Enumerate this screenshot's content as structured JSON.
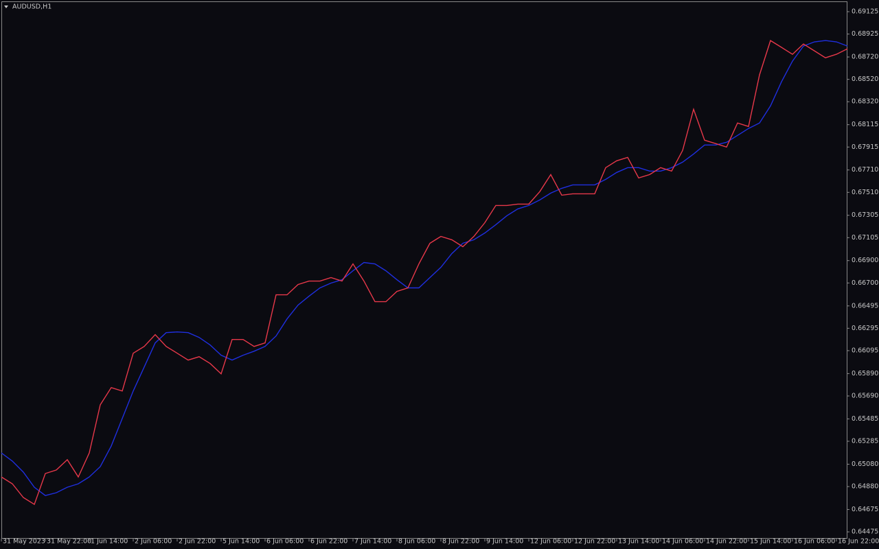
{
  "chart_data": {
    "type": "line",
    "title": "AUDUSD,H1",
    "categories": [
      "31 May 2023",
      null,
      null,
      null,
      "31 May 22:00",
      null,
      null,
      null,
      "1 Jun 14:00",
      null,
      null,
      null,
      "2 Jun 06:00",
      null,
      null,
      null,
      "2 Jun 22:00",
      null,
      null,
      null,
      "5 Jun 14:00",
      null,
      null,
      null,
      "6 Jun 06:00",
      null,
      null,
      null,
      "6 Jun 22:00",
      null,
      null,
      null,
      "7 Jun 14:00",
      null,
      null,
      null,
      "8 Jun 06:00",
      null,
      null,
      null,
      "8 Jun 22:00",
      null,
      null,
      null,
      "9 Jun 14:00",
      null,
      null,
      null,
      "12 Jun 06:00",
      null,
      null,
      null,
      "12 Jun 22:00",
      null,
      null,
      null,
      "13 Jun 14:00",
      null,
      null,
      null,
      "14 Jun 06:00",
      null,
      null,
      null,
      "14 Jun 22:00",
      null,
      null,
      null,
      "15 Jun 14:00",
      null,
      null,
      null,
      "16 Jun 06:00",
      null,
      null,
      null,
      "16 Jun 22:00",
      null
    ],
    "series": [
      {
        "color": "#1f2fe0",
        "values": [
          0.65181,
          0.65108,
          0.65009,
          0.64874,
          0.648,
          0.64825,
          0.64874,
          0.64905,
          0.64966,
          0.65058,
          0.65243,
          0.65488,
          0.65734,
          0.65949,
          0.66164,
          0.66256,
          0.66262,
          0.66256,
          0.66213,
          0.66146,
          0.66054,
          0.66011,
          0.66054,
          0.6609,
          0.66133,
          0.66226,
          0.66379,
          0.66502,
          0.66582,
          0.66656,
          0.66699,
          0.66729,
          0.66809,
          0.66883,
          0.66871,
          0.66809,
          0.66729,
          0.66656,
          0.66656,
          0.66748,
          0.6684,
          0.66963,
          0.67055,
          0.67086,
          0.67147,
          0.67221,
          0.67301,
          0.67362,
          0.67393,
          0.67442,
          0.67503,
          0.67546,
          0.67577,
          0.67577,
          0.67577,
          0.67626,
          0.67688,
          0.67731,
          0.67731,
          0.677,
          0.677,
          0.67731,
          0.6778,
          0.67853,
          0.67933,
          0.67933,
          0.67958,
          0.68019,
          0.68081,
          0.6813,
          0.68283,
          0.68498,
          0.68683,
          0.68818,
          0.68855,
          0.68867,
          0.68855,
          0.68818
        ]
      },
      {
        "color": "#e8384a",
        "values": [
          0.64966,
          0.64905,
          0.64782,
          0.64721,
          0.64997,
          0.65028,
          0.6512,
          0.64966,
          0.65181,
          0.65611,
          0.65765,
          0.65734,
          0.66072,
          0.66133,
          0.66238,
          0.66133,
          0.66072,
          0.66011,
          0.66041,
          0.6598,
          0.65888,
          0.66195,
          0.66195,
          0.66133,
          0.66164,
          0.66594,
          0.66594,
          0.66686,
          0.66717,
          0.66717,
          0.66748,
          0.66717,
          0.66871,
          0.66717,
          0.66533,
          0.66533,
          0.66625,
          0.66656,
          0.66871,
          0.67055,
          0.67116,
          0.67086,
          0.67024,
          0.67116,
          0.67239,
          0.67393,
          0.67393,
          0.67405,
          0.67405,
          0.67516,
          0.67669,
          0.67485,
          0.67497,
          0.67497,
          0.67497,
          0.67731,
          0.67792,
          0.67823,
          0.67639,
          0.67669,
          0.67731,
          0.677,
          0.67884,
          0.68253,
          0.67976,
          0.67946,
          0.67915,
          0.6813,
          0.68099,
          0.6856,
          0.68867,
          0.68806,
          0.68744,
          0.68836,
          0.68775,
          0.68713,
          0.68744,
          0.68793
        ]
      }
    ],
    "ylim": [
      0.64414,
      0.69211
    ],
    "yticks": [
      0.69125,
      0.68925,
      {
        "value": 0.6872,
        "label": "0.68720"
      },
      {
        "value": 0.6852,
        "label": "0.68520"
      },
      {
        "value": 0.6832,
        "label": "0.68320"
      },
      0.68115,
      0.67915,
      {
        "value": 0.6771,
        "label": "0.67710"
      },
      {
        "value": 0.6751,
        "label": "0.67510"
      },
      0.67305,
      0.67105,
      {
        "value": 0.669,
        "label": "0.66900"
      },
      {
        "value": 0.667,
        "label": "0.66700"
      },
      0.66495,
      0.66295,
      0.66095,
      {
        "value": 0.6589,
        "label": "0.65890"
      },
      {
        "value": 0.6569,
        "label": "0.65690"
      },
      0.65485,
      0.65285,
      {
        "value": 0.6508,
        "label": "0.65080"
      },
      {
        "value": 0.6488,
        "label": "0.64880"
      },
      0.64675,
      0.64475
    ]
  }
}
